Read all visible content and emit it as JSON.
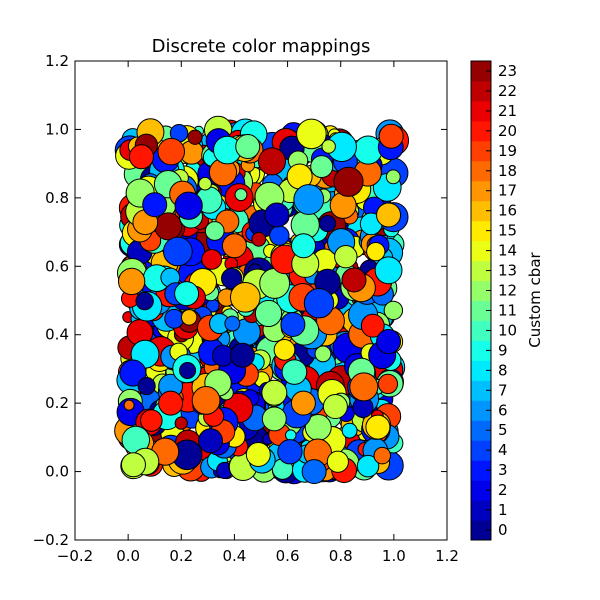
{
  "chart_data": {
    "type": "scatter",
    "title": "Discrete color mappings",
    "xlabel": "",
    "ylabel": "",
    "xlim": [
      -0.2,
      1.2
    ],
    "ylim": [
      -0.2,
      1.2
    ],
    "xticks": [
      -0.2,
      0.0,
      0.2,
      0.4,
      0.6,
      0.8,
      1.0,
      1.2
    ],
    "yticks": [
      -0.2,
      0.0,
      0.2,
      0.4,
      0.6,
      0.8,
      1.0,
      1.2
    ],
    "xtick_labels": [
      "−0.2",
      "0.0",
      "0.2",
      "0.4",
      "0.6",
      "0.8",
      "1.0",
      "1.2"
    ],
    "ytick_labels": [
      "−0.2",
      "0.0",
      "0.2",
      "0.4",
      "0.6",
      "0.8",
      "1.0",
      "1.2"
    ],
    "grid": false,
    "points_description": "approx. 1000 random points uniformly distributed in [0,1]x[0,1], random marker sizes, color by integer category 0-23",
    "colorbar": {
      "label": "Custom cbar",
      "levels": 24,
      "ticks": [
        0,
        1,
        2,
        3,
        4,
        5,
        6,
        7,
        8,
        9,
        10,
        11,
        12,
        13,
        14,
        15,
        16,
        17,
        18,
        19,
        20,
        21,
        22,
        23
      ],
      "tick_labels": [
        "0",
        "1",
        "2",
        "3",
        "4",
        "5",
        "6",
        "7",
        "8",
        "9",
        "10",
        "11",
        "12",
        "13",
        "14",
        "15",
        "16",
        "17",
        "18",
        "19",
        "20",
        "21",
        "22",
        "23"
      ],
      "colormap": "jet"
    },
    "sample_points": [
      {
        "x": 0.02,
        "y": 0.02,
        "c": 13
      },
      {
        "x": 0.05,
        "y": 0.92,
        "c": 20
      },
      {
        "x": 0.1,
        "y": 0.78,
        "c": 3
      },
      {
        "x": 0.16,
        "y": 0.2,
        "c": 20
      },
      {
        "x": 0.22,
        "y": 0.52,
        "c": 9
      },
      {
        "x": 0.31,
        "y": 0.09,
        "c": 1
      },
      {
        "x": 0.4,
        "y": 0.66,
        "c": 18
      },
      {
        "x": 0.43,
        "y": 0.34,
        "c": 0
      },
      {
        "x": 0.45,
        "y": 0.95,
        "c": 11
      },
      {
        "x": 0.49,
        "y": 0.05,
        "c": 14
      },
      {
        "x": 0.56,
        "y": 0.75,
        "c": 1
      },
      {
        "x": 0.62,
        "y": 0.43,
        "c": 4
      },
      {
        "x": 0.66,
        "y": 0.66,
        "c": 9
      },
      {
        "x": 0.7,
        "y": 0.0,
        "c": 5
      },
      {
        "x": 0.78,
        "y": 0.19,
        "c": 13
      },
      {
        "x": 0.85,
        "y": 0.56,
        "c": 22
      },
      {
        "x": 0.94,
        "y": 0.13,
        "c": 15
      },
      {
        "x": 0.98,
        "y": 0.75,
        "c": 16
      },
      {
        "x": 0.99,
        "y": 0.98,
        "c": 19
      },
      {
        "x": 0.98,
        "y": 0.38,
        "c": 2
      }
    ]
  }
}
